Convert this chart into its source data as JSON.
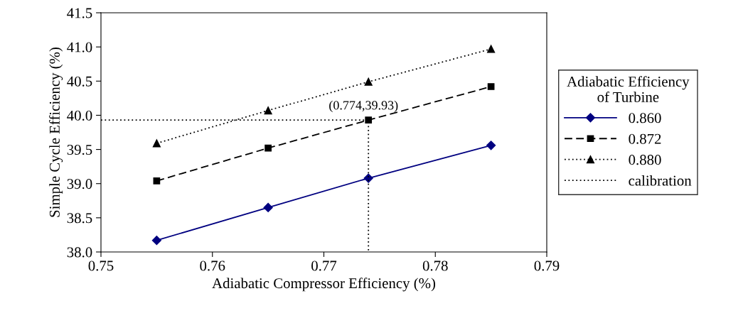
{
  "chart_data": {
    "type": "line",
    "xlabel": "Adiabatic Compressor Efficiency (%)",
    "ylabel": "Simple Cycle Efficiency (%)",
    "legend_title": "Adiabatic Efficiency\nof Turbine",
    "xlim": [
      0.75,
      0.79
    ],
    "xticks": [
      {
        "value": 0.75,
        "label": "0.75"
      },
      {
        "value": 0.76,
        "label": "0.76"
      },
      {
        "value": 0.77,
        "label": "0.77"
      },
      {
        "value": 0.78,
        "label": "0.78"
      },
      {
        "value": 0.79,
        "label": "0.79"
      }
    ],
    "ylim": [
      38.0,
      41.5
    ],
    "yticks": [
      {
        "value": 38.0,
        "label": "38.0"
      },
      {
        "value": 38.5,
        "label": "38.5"
      },
      {
        "value": 39.0,
        "label": "39.0"
      },
      {
        "value": 39.5,
        "label": "39.5"
      },
      {
        "value": 40.0,
        "label": "40.0"
      },
      {
        "value": 40.5,
        "label": "40.5"
      },
      {
        "value": 41.0,
        "label": "41.0"
      },
      {
        "value": 41.5,
        "label": "41.5"
      }
    ],
    "grid": false,
    "legend": "right",
    "series": [
      {
        "name": "0.860",
        "color": "#000080",
        "marker": "diamond",
        "line_style": "solid",
        "x": [
          0.755,
          0.765,
          0.774,
          0.785
        ],
        "values": [
          38.17,
          38.65,
          39.08,
          39.56
        ]
      },
      {
        "name": "0.872",
        "color": "#000000",
        "marker": "square",
        "line_style": "dashed",
        "x": [
          0.755,
          0.765,
          0.774,
          0.785
        ],
        "values": [
          39.04,
          39.52,
          39.93,
          40.42
        ]
      },
      {
        "name": "0.880",
        "color": "#000000",
        "marker": "triangle",
        "line_style": "dotted",
        "x": [
          0.755,
          0.765,
          0.774,
          0.785
        ],
        "values": [
          39.59,
          40.07,
          40.49,
          40.97
        ]
      },
      {
        "name": "calibration",
        "color": "#000000",
        "marker": "none",
        "line_style": "dotted",
        "x": [
          0.75,
          0.774,
          0.774
        ],
        "values": [
          39.93,
          39.93,
          38.0
        ]
      }
    ],
    "annotations": [
      {
        "text": "(0.774,39.93)",
        "x": 0.774,
        "y": 39.93
      }
    ]
  }
}
